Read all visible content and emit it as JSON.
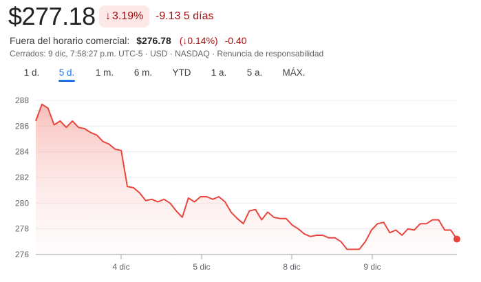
{
  "quote": {
    "price": "$277.18",
    "change_arrow_icon": "arrow-down-icon",
    "change_pct": "3.19%",
    "change_abs_period": "-9.13 5 días",
    "after_hours_label": "Fuera del horario comercial:",
    "after_hours_price": "$276.78",
    "after_hours_pct": "(↓0.14%)",
    "after_hours_abs": "-0.40",
    "meta": "Cerrados: 9 dic, 7:58:27 p.m. UTC-5 · USD · NASDAQ · Renuncia de responsabilidad"
  },
  "tabs": [
    {
      "label": "1 d.",
      "active": false
    },
    {
      "label": "5 d.",
      "active": true
    },
    {
      "label": "1 m.",
      "active": false
    },
    {
      "label": "6 m.",
      "active": false
    },
    {
      "label": "YTD",
      "active": false
    },
    {
      "label": "1 a.",
      "active": false
    },
    {
      "label": "5 a.",
      "active": false
    },
    {
      "label": "MÁX.",
      "active": false
    }
  ],
  "colors": {
    "line": "#e8453c",
    "negative_text": "#a50e0e",
    "badge_bg": "#fce8e6",
    "accent": "#1a73e8"
  },
  "chart_data": {
    "type": "line",
    "title": "",
    "xlabel": "",
    "ylabel": "",
    "ylim": [
      276,
      288
    ],
    "yticks": [
      276,
      278,
      280,
      282,
      284,
      286,
      288
    ],
    "xticks": [
      "4 dic",
      "5 dic",
      "8 dic",
      "9 dic"
    ],
    "grid": true,
    "series": [
      {
        "name": "Price (USD)",
        "values": [
          286.4,
          287.7,
          287.4,
          286.1,
          286.4,
          285.9,
          286.4,
          285.9,
          285.8,
          285.5,
          285.3,
          284.8,
          284.6,
          284.2,
          284.1,
          281.3,
          281.2,
          280.8,
          280.2,
          280.3,
          280.1,
          280.3,
          280.0,
          279.4,
          278.9,
          280.4,
          280.1,
          280.5,
          280.5,
          280.3,
          280.5,
          280.1,
          279.3,
          278.8,
          278.4,
          279.4,
          279.5,
          278.7,
          279.3,
          278.9,
          278.8,
          278.8,
          278.3,
          278.0,
          277.6,
          277.4,
          277.5,
          277.5,
          277.3,
          277.3,
          277.0,
          276.4,
          276.4,
          276.4,
          277.0,
          277.9,
          278.4,
          278.5,
          277.7,
          277.9,
          277.5,
          278.0,
          277.9,
          278.4,
          278.4,
          278.7,
          278.7,
          277.9,
          277.9,
          277.2
        ]
      }
    ],
    "last_value": 277.18
  }
}
